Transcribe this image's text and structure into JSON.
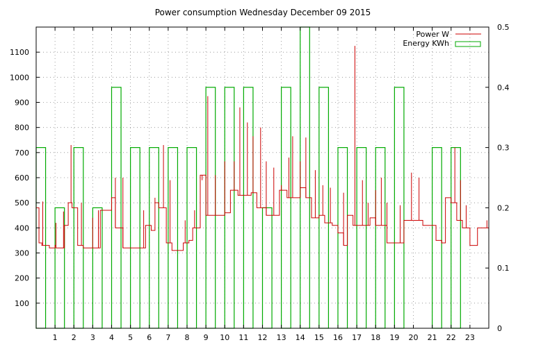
{
  "chart_data": {
    "type": "line",
    "title": "Power consumption Wednesday December 09 2015",
    "xlabel": "",
    "ylabel": "",
    "y2label": "",
    "grid": true,
    "legend_position": "top-right",
    "x": {
      "range": [
        0,
        24
      ],
      "ticks": [
        1,
        2,
        3,
        4,
        5,
        6,
        7,
        8,
        9,
        10,
        11,
        12,
        13,
        14,
        15,
        16,
        17,
        18,
        19,
        20,
        21,
        22,
        23
      ],
      "tick_labels": [
        "1",
        "2",
        "3",
        "4",
        "5",
        "6",
        "7",
        "8",
        "9",
        "10",
        "11",
        "12",
        "13",
        "14",
        "15",
        "16",
        "17",
        "18",
        "19",
        "20",
        "21",
        "22",
        "23"
      ]
    },
    "y_left": {
      "range": [
        0,
        1200
      ],
      "ticks": [
        100,
        200,
        300,
        400,
        500,
        600,
        700,
        800,
        900,
        1000,
        1100
      ],
      "tick_labels": [
        "100",
        "200",
        "300",
        "400",
        "500",
        "600",
        "700",
        "800",
        "900",
        "1000",
        "1100"
      ]
    },
    "y_right": {
      "range": [
        0,
        0.5
      ],
      "ticks": [
        0,
        0.1,
        0.2,
        0.3,
        0.4,
        0.5
      ],
      "tick_labels": [
        "0",
        "0.1",
        "0.2",
        "0.3",
        "0.4",
        "0.5"
      ]
    },
    "series": [
      {
        "name": "Power W",
        "axis": "left",
        "style": "steps",
        "color": "#cc0000",
        "x": [
          0.0,
          0.15,
          0.3,
          0.55,
          0.7,
          0.85,
          1.0,
          1.05,
          1.25,
          1.5,
          1.7,
          1.9,
          2.1,
          2.2,
          2.5,
          2.8,
          3.1,
          3.4,
          3.7,
          4.0,
          4.2,
          4.6,
          4.8,
          5.2,
          5.5,
          5.8,
          6.1,
          6.3,
          6.5,
          6.7,
          6.9,
          7.2,
          7.5,
          7.8,
          8.1,
          8.3,
          8.7,
          8.9,
          9.0,
          9.5,
          10.0,
          10.3,
          10.7,
          11.0,
          11.4,
          11.7,
          12.2,
          12.5,
          12.9,
          13.3,
          13.6,
          14.0,
          14.3,
          14.6,
          15.0,
          15.3,
          15.7,
          16.0,
          16.3,
          16.5,
          16.8,
          17.3,
          17.7,
          18.0,
          18.3,
          18.6,
          19.0,
          19.5,
          20.0,
          20.5,
          20.9,
          21.2,
          21.5,
          21.7,
          22.0,
          22.3,
          22.6,
          23.0,
          23.4,
          23.6,
          23.9
        ],
        "values": [
          480,
          340,
          330,
          330,
          320,
          320,
          330,
          320,
          320,
          410,
          500,
          480,
          480,
          330,
          320,
          320,
          320,
          470,
          470,
          520,
          400,
          320,
          320,
          320,
          320,
          410,
          390,
          500,
          480,
          480,
          340,
          310,
          310,
          340,
          350,
          400,
          610,
          610,
          450,
          450,
          460,
          550,
          530,
          530,
          540,
          480,
          450,
          450,
          550,
          520,
          520,
          560,
          520,
          440,
          450,
          420,
          410,
          380,
          330,
          450,
          410,
          410,
          440,
          410,
          410,
          340,
          340,
          430,
          430,
          410,
          410,
          350,
          340,
          520,
          500,
          430,
          400,
          330,
          400,
          400,
          400
        ],
        "spikes": [
          [
            0.35,
            505
          ],
          [
            1.05,
            420
          ],
          [
            1.45,
            465
          ],
          [
            1.85,
            730
          ],
          [
            2.4,
            500
          ],
          [
            3.0,
            440
          ],
          [
            3.3,
            470
          ],
          [
            4.2,
            600
          ],
          [
            4.6,
            600
          ],
          [
            5.7,
            470
          ],
          [
            6.3,
            520
          ],
          [
            6.75,
            730
          ],
          [
            7.1,
            590
          ],
          [
            7.9,
            430
          ],
          [
            8.4,
            470
          ],
          [
            8.8,
            590
          ],
          [
            9.1,
            925
          ],
          [
            9.5,
            610
          ],
          [
            10.0,
            665
          ],
          [
            10.5,
            665
          ],
          [
            10.8,
            880
          ],
          [
            11.2,
            820
          ],
          [
            11.5,
            765
          ],
          [
            11.9,
            800
          ],
          [
            12.2,
            665
          ],
          [
            12.6,
            640
          ],
          [
            13.0,
            570
          ],
          [
            13.4,
            680
          ],
          [
            13.6,
            765
          ],
          [
            14.0,
            665
          ],
          [
            14.3,
            760
          ],
          [
            14.8,
            630
          ],
          [
            15.2,
            570
          ],
          [
            15.6,
            560
          ],
          [
            16.3,
            540
          ],
          [
            16.9,
            1125
          ],
          [
            17.3,
            590
          ],
          [
            17.6,
            500
          ],
          [
            18.0,
            550
          ],
          [
            18.3,
            600
          ],
          [
            18.6,
            500
          ],
          [
            19.3,
            490
          ],
          [
            19.9,
            620
          ],
          [
            20.3,
            600
          ],
          [
            21.5,
            350
          ],
          [
            22.2,
            720
          ],
          [
            22.5,
            590
          ],
          [
            22.8,
            490
          ],
          [
            23.4,
            400
          ],
          [
            23.9,
            430
          ]
        ]
      },
      {
        "name": "Energy KWh",
        "axis": "right",
        "style": "boxes",
        "color": "#00aa00",
        "bar_width": 0.5,
        "x": [
          0.0,
          1.0,
          2.0,
          3.0,
          4.0,
          5.0,
          6.0,
          7.0,
          8.0,
          9.0,
          10.0,
          11.0,
          12.0,
          13.0,
          14.0,
          15.0,
          16.0,
          17.0,
          18.0,
          19.0,
          20.0,
          21.0,
          22.0,
          23.0
        ],
        "values": [
          0.3,
          0.2,
          0.3,
          0.2,
          0.4,
          0.3,
          0.3,
          0.3,
          0.3,
          0.4,
          0.4,
          0.4,
          0.2,
          0.4,
          0.5,
          0.4,
          0.3,
          0.3,
          0.3,
          0.4,
          0.0,
          0.3,
          0.3,
          0.0
        ]
      }
    ]
  }
}
